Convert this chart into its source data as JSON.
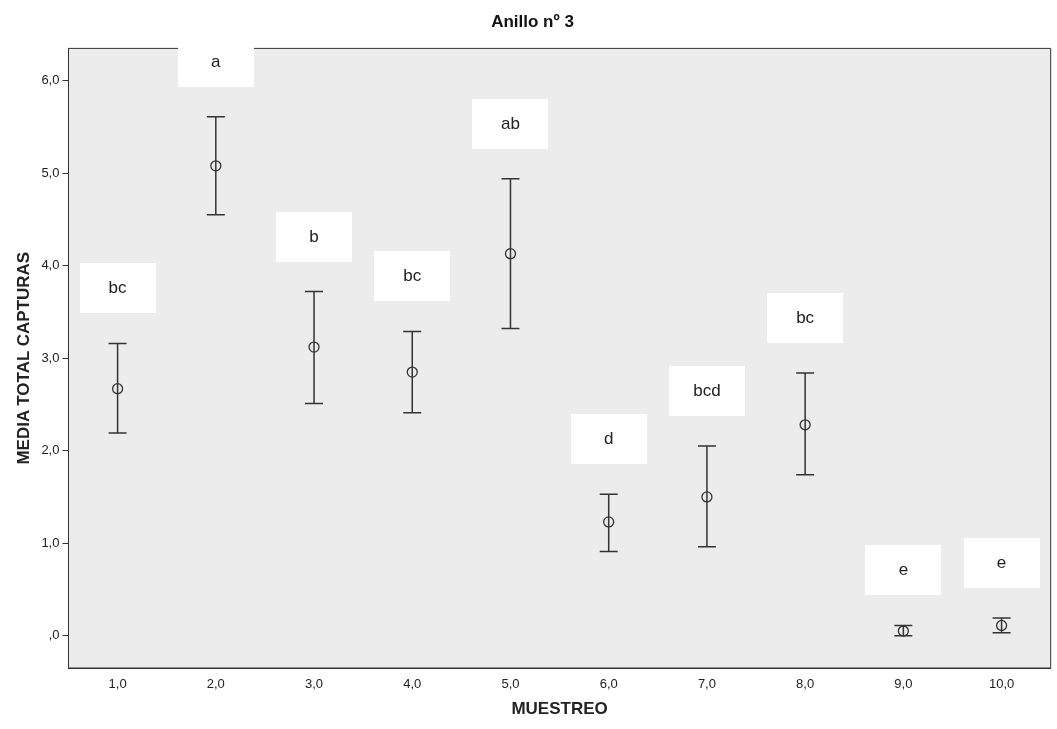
{
  "chart_data": {
    "type": "scatter",
    "title": "Anillo nº 3",
    "xlabel": "MUESTREO",
    "ylabel": "MEDIA TOTAL CAPTURAS",
    "categories": [
      "1,0",
      "2,0",
      "3,0",
      "4,0",
      "5,0",
      "6,0",
      "7,0",
      "8,0",
      "9,0",
      "10,0"
    ],
    "series": [
      {
        "color": "#333333",
        "values": [
          2.67,
          5.08,
          3.12,
          2.85,
          4.13,
          1.23,
          1.5,
          2.28,
          0.05,
          0.11
        ],
        "errors": [
          [
            2.19,
            3.16
          ],
          [
            4.55,
            5.61
          ],
          [
            2.51,
            3.72
          ],
          [
            2.41,
            3.29
          ],
          [
            3.32,
            4.94
          ],
          [
            0.91,
            1.53
          ],
          [
            0.96,
            2.05
          ],
          [
            1.74,
            2.84
          ],
          [
            0,
            0.11
          ],
          [
            0.03,
            0.19
          ]
        ]
      }
    ],
    "marker": "circle",
    "grid": false,
    "legend": false,
    "ylim": [
      -0.35,
      6.35
    ],
    "yticks": [
      {
        "value": 0,
        "label": ",0"
      },
      {
        "value": 1,
        "label": "1,0"
      },
      {
        "value": 2,
        "label": "2,0"
      },
      {
        "value": 3,
        "label": "3,0"
      },
      {
        "value": 4,
        "label": "4,0"
      },
      {
        "value": 5,
        "label": "5,0"
      },
      {
        "value": 6,
        "label": "6,0"
      }
    ],
    "annotations": [
      {
        "text": "bc",
        "x": "1,0",
        "y": 3.16
      },
      {
        "text": "a",
        "x": "2,0",
        "y": 5.61
      },
      {
        "text": "b",
        "x": "3,0",
        "y": 3.72
      },
      {
        "text": "bc",
        "x": "4,0",
        "y": 3.29
      },
      {
        "text": "ab",
        "x": "5,0",
        "y": 4.94
      },
      {
        "text": "d",
        "x": "6,0",
        "y": 1.53
      },
      {
        "text": "bcd",
        "x": "7,0",
        "y": 2.05
      },
      {
        "text": "bc",
        "x": "8,0",
        "y": 2.84
      },
      {
        "text": "e",
        "x": "9,0",
        "y": 0.11
      },
      {
        "text": "e",
        "x": "10,0",
        "y": 0.19
      }
    ]
  }
}
